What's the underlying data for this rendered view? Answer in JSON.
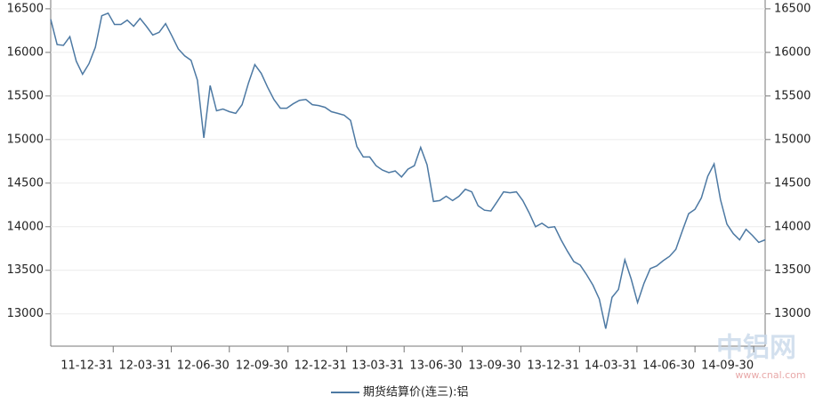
{
  "chart_data": {
    "type": "line",
    "x": [
      "11-09-24",
      "11-10-04",
      "11-10-14",
      "11-10-24",
      "11-11-03",
      "11-11-13",
      "11-11-23",
      "11-12-03",
      "11-12-13",
      "11-12-23",
      "12-01-02",
      "12-01-12",
      "12-01-22",
      "12-02-01",
      "12-02-11",
      "12-02-21",
      "12-03-02",
      "12-03-12",
      "12-03-22",
      "12-04-01",
      "12-04-11",
      "12-04-21",
      "12-05-01",
      "12-05-11",
      "12-05-21",
      "12-05-31",
      "12-06-10",
      "12-06-20",
      "12-06-30",
      "12-07-10",
      "12-07-20",
      "12-07-30",
      "12-08-09",
      "12-08-19",
      "12-08-29",
      "12-09-08",
      "12-09-18",
      "12-09-28",
      "12-10-08",
      "12-10-18",
      "12-10-28",
      "12-11-07",
      "12-11-17",
      "12-11-27",
      "12-12-07",
      "12-12-17",
      "12-12-27",
      "13-01-06",
      "13-01-16",
      "13-01-26",
      "13-02-05",
      "13-02-15",
      "13-02-25",
      "13-03-07",
      "13-03-17",
      "13-03-27",
      "13-04-06",
      "13-04-16",
      "13-04-26",
      "13-05-06",
      "13-05-16",
      "13-05-26",
      "13-06-05",
      "13-06-15",
      "13-06-25",
      "13-07-05",
      "13-07-15",
      "13-07-25",
      "13-08-04",
      "13-08-14",
      "13-08-24",
      "13-09-03",
      "13-09-13",
      "13-09-23",
      "13-10-03",
      "13-10-13",
      "13-10-23",
      "13-11-02",
      "13-11-12",
      "13-11-22",
      "13-12-02",
      "13-12-12",
      "13-12-22",
      "14-01-01",
      "14-01-11",
      "14-01-21",
      "14-01-31",
      "14-02-10",
      "14-02-20",
      "14-03-02",
      "14-03-12",
      "14-03-22",
      "14-04-01",
      "14-04-11",
      "14-04-21",
      "14-05-01",
      "14-05-11",
      "14-05-21",
      "14-05-31",
      "14-06-10",
      "14-06-20",
      "14-06-30",
      "14-07-10",
      "14-07-20",
      "14-07-30",
      "14-08-09",
      "14-08-19",
      "14-08-29",
      "14-09-08",
      "14-09-18",
      "14-09-28",
      "14-10-08",
      "14-10-18"
    ],
    "series": [
      {
        "name": "期货结算价(连三):铝",
        "color": "#4d79a3",
        "values": [
          16380,
          16090,
          16080,
          16180,
          15900,
          15750,
          15870,
          16060,
          16420,
          16450,
          16320,
          16320,
          16370,
          16300,
          16390,
          16300,
          16200,
          16230,
          16330,
          16190,
          16040,
          15960,
          15910,
          15680,
          15020,
          15620,
          15330,
          15350,
          15320,
          15300,
          15400,
          15650,
          15860,
          15760,
          15600,
          15460,
          15360,
          15360,
          15410,
          15450,
          15460,
          15400,
          15390,
          15370,
          15320,
          15300,
          15280,
          15220,
          14920,
          14800,
          14800,
          14700,
          14650,
          14620,
          14640,
          14570,
          14660,
          14700,
          14910,
          14710,
          14290,
          14300,
          14350,
          14300,
          14350,
          14430,
          14400,
          14240,
          14190,
          14180,
          14290,
          14400,
          14390,
          14400,
          14300,
          14160,
          14000,
          14040,
          13990,
          14000,
          13850,
          13720,
          13600,
          13560,
          13450,
          13330,
          13170,
          12830,
          13190,
          13280,
          13620,
          13400,
          13130,
          13350,
          13520,
          13550,
          13610,
          13660,
          13740,
          13950,
          14150,
          14200,
          14330,
          14580,
          14720,
          14310,
          14030,
          13920,
          13850,
          13970,
          13900,
          13820,
          13850
        ]
      }
    ],
    "xlim": [
      "11-09-24",
      "14-10-18"
    ],
    "xticks": [
      "11-12-31",
      "12-03-31",
      "12-06-30",
      "12-09-30",
      "12-12-31",
      "13-03-31",
      "13-06-30",
      "13-09-30",
      "13-12-31",
      "14-03-31",
      "14-06-30",
      "14-09-30"
    ],
    "ylim": [
      12650,
      16550
    ],
    "yticks": [
      13000,
      13500,
      14000,
      14500,
      15000,
      15500,
      16000,
      16500
    ],
    "grid": true,
    "legend": "bottom",
    "watermark": {
      "logo": "中铝网",
      "url": "www.cnal.com"
    }
  }
}
